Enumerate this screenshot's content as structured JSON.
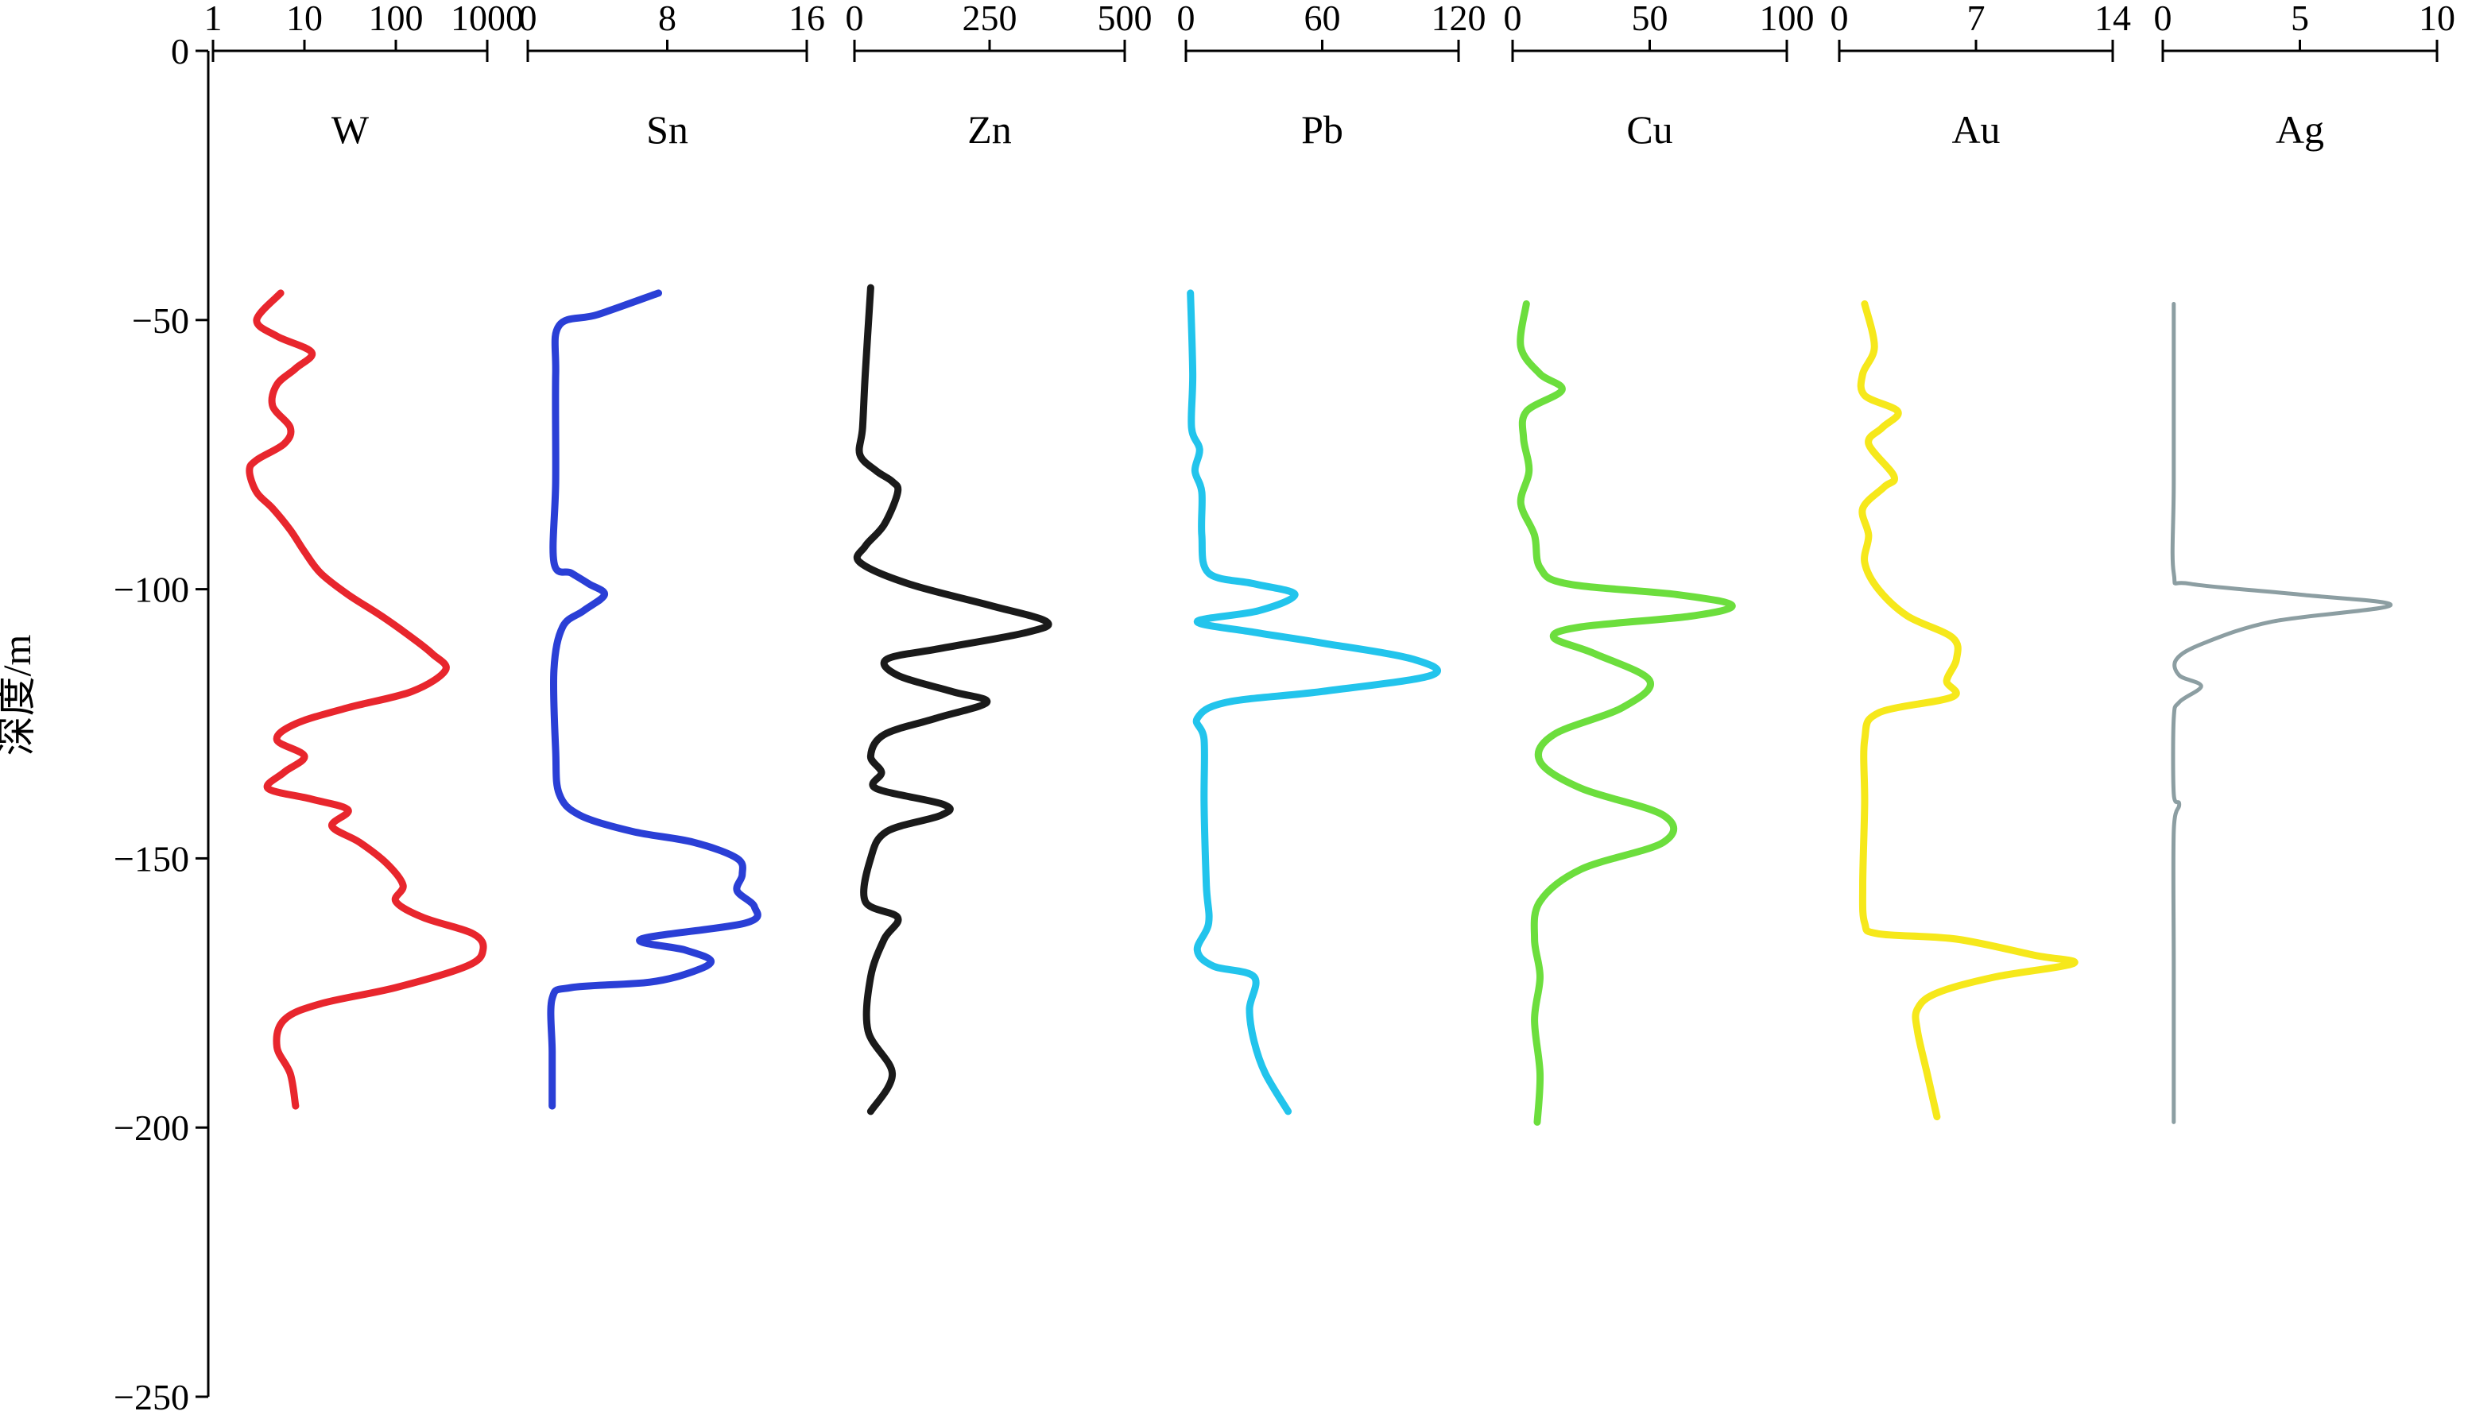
{
  "chart_data": {
    "type": "line",
    "orientation": "depth-profile",
    "ylabel": "深度/m",
    "ylim": [
      -250,
      0
    ],
    "yticks": [
      0,
      -50,
      -100,
      -150,
      -200,
      -250
    ],
    "grid": false,
    "panels": [
      {
        "name": "W",
        "color": "#e8262d",
        "scale": "log",
        "xlim": [
          1,
          1000
        ],
        "xticks": [
          1,
          10,
          100,
          1000
        ],
        "xtick_labels": [
          "1",
          "10",
          "100",
          "1000"
        ],
        "points": [
          [
            5.5,
            -45
          ],
          [
            3,
            -50
          ],
          [
            5,
            -53
          ],
          [
            12,
            -56
          ],
          [
            8,
            -59
          ],
          [
            5,
            -62
          ],
          [
            4.5,
            -66
          ],
          [
            7,
            -70
          ],
          [
            6,
            -73
          ],
          [
            3,
            -76
          ],
          [
            2.5,
            -78
          ],
          [
            3,
            -82
          ],
          [
            4.5,
            -85
          ],
          [
            7,
            -89
          ],
          [
            10,
            -93
          ],
          [
            15,
            -97
          ],
          [
            30,
            -101
          ],
          [
            70,
            -105
          ],
          [
            150,
            -109
          ],
          [
            250,
            -112
          ],
          [
            350,
            -115
          ],
          [
            150,
            -119
          ],
          [
            30,
            -122
          ],
          [
            8,
            -125
          ],
          [
            5,
            -128
          ],
          [
            10,
            -131
          ],
          [
            6,
            -134
          ],
          [
            4,
            -137
          ],
          [
            12,
            -139
          ],
          [
            30,
            -141
          ],
          [
            20,
            -144
          ],
          [
            40,
            -147
          ],
          [
            80,
            -151
          ],
          [
            120,
            -155
          ],
          [
            100,
            -158
          ],
          [
            200,
            -161
          ],
          [
            700,
            -164
          ],
          [
            900,
            -167
          ],
          [
            600,
            -170
          ],
          [
            100,
            -174
          ],
          [
            15,
            -177
          ],
          [
            6,
            -180
          ],
          [
            5,
            -185
          ],
          [
            7,
            -190
          ],
          [
            8,
            -196
          ]
        ]
      },
      {
        "name": "Sn",
        "color": "#2a3fd6",
        "scale": "linear",
        "xlim": [
          0,
          16
        ],
        "xticks": [
          0,
          8,
          16
        ],
        "xtick_labels": [
          "0",
          "8",
          "16"
        ],
        "points": [
          [
            7.5,
            -45
          ],
          [
            4,
            -49
          ],
          [
            1.8,
            -51
          ],
          [
            1.6,
            -60
          ],
          [
            1.6,
            -80
          ],
          [
            1.5,
            -95
          ],
          [
            2.5,
            -97
          ],
          [
            3.5,
            -99
          ],
          [
            4.4,
            -101
          ],
          [
            3.2,
            -104
          ],
          [
            2,
            -107
          ],
          [
            1.5,
            -115
          ],
          [
            1.6,
            -130
          ],
          [
            1.8,
            -138
          ],
          [
            3,
            -142
          ],
          [
            6,
            -145
          ],
          [
            9.5,
            -147
          ],
          [
            12,
            -150
          ],
          [
            12.3,
            -153
          ],
          [
            12,
            -156
          ],
          [
            13,
            -159
          ],
          [
            12.5,
            -162
          ],
          [
            6.5,
            -165
          ],
          [
            9,
            -167
          ],
          [
            10.5,
            -169
          ],
          [
            9.5,
            -171
          ],
          [
            7,
            -173
          ],
          [
            2.5,
            -174
          ],
          [
            1.4,
            -176
          ],
          [
            1.4,
            -186
          ],
          [
            1.4,
            -196
          ]
        ]
      },
      {
        "name": "Zn",
        "color": "#1a1a1a",
        "scale": "linear",
        "xlim": [
          0,
          500
        ],
        "xticks": [
          0,
          250,
          500
        ],
        "xtick_labels": [
          "0",
          "250",
          "500"
        ],
        "points": [
          [
            30,
            -44
          ],
          [
            20,
            -60
          ],
          [
            15,
            -70
          ],
          [
            10,
            -75
          ],
          [
            40,
            -78
          ],
          [
            70,
            -80
          ],
          [
            80,
            -82
          ],
          [
            55,
            -88
          ],
          [
            20,
            -92
          ],
          [
            10,
            -95
          ],
          [
            100,
            -99
          ],
          [
            250,
            -103
          ],
          [
            355,
            -106
          ],
          [
            320,
            -108
          ],
          [
            160,
            -111
          ],
          [
            60,
            -113
          ],
          [
            80,
            -116
          ],
          [
            180,
            -119
          ],
          [
            245,
            -121
          ],
          [
            150,
            -124
          ],
          [
            55,
            -127
          ],
          [
            30,
            -131
          ],
          [
            50,
            -134
          ],
          [
            40,
            -137
          ],
          [
            165,
            -140
          ],
          [
            160,
            -142
          ],
          [
            60,
            -145
          ],
          [
            30,
            -150
          ],
          [
            20,
            -158
          ],
          [
            80,
            -161
          ],
          [
            55,
            -165
          ],
          [
            30,
            -172
          ],
          [
            25,
            -182
          ],
          [
            70,
            -190
          ],
          [
            30,
            -197
          ]
        ]
      },
      {
        "name": "Pb",
        "color": "#22c4ec",
        "scale": "linear",
        "xlim": [
          0,
          120
        ],
        "xticks": [
          0,
          60,
          120
        ],
        "xtick_labels": [
          "0",
          "60",
          "120"
        ],
        "points": [
          [
            2,
            -45
          ],
          [
            3,
            -60
          ],
          [
            2.5,
            -70
          ],
          [
            6,
            -74
          ],
          [
            4,
            -78
          ],
          [
            7,
            -82
          ],
          [
            7,
            -90
          ],
          [
            10,
            -97
          ],
          [
            30,
            -99
          ],
          [
            48,
            -101
          ],
          [
            32,
            -104
          ],
          [
            5,
            -106
          ],
          [
            30,
            -108
          ],
          [
            60,
            -110
          ],
          [
            100,
            -113
          ],
          [
            108,
            -116
          ],
          [
            60,
            -119
          ],
          [
            18,
            -121
          ],
          [
            5,
            -124
          ],
          [
            8,
            -128
          ],
          [
            8,
            -140
          ],
          [
            9,
            -155
          ],
          [
            10,
            -162
          ],
          [
            5,
            -167
          ],
          [
            12,
            -170
          ],
          [
            30,
            -172
          ],
          [
            28,
            -178
          ],
          [
            30,
            -184
          ],
          [
            35,
            -190
          ],
          [
            45,
            -197
          ]
        ]
      },
      {
        "name": "Cu",
        "color": "#6cde3d",
        "scale": "linear",
        "xlim": [
          0,
          100
        ],
        "xticks": [
          0,
          50,
          100
        ],
        "xtick_labels": [
          "0",
          "50",
          "100"
        ],
        "points": [
          [
            5,
            -47
          ],
          [
            3,
            -55
          ],
          [
            10,
            -60
          ],
          [
            18,
            -63
          ],
          [
            5,
            -67
          ],
          [
            4,
            -72
          ],
          [
            6,
            -78
          ],
          [
            3,
            -84
          ],
          [
            8,
            -90
          ],
          [
            10,
            -96
          ],
          [
            20,
            -99
          ],
          [
            60,
            -101
          ],
          [
            80,
            -103
          ],
          [
            65,
            -105
          ],
          [
            25,
            -107
          ],
          [
            15,
            -109
          ],
          [
            30,
            -112
          ],
          [
            50,
            -117
          ],
          [
            40,
            -122
          ],
          [
            15,
            -127
          ],
          [
            10,
            -132
          ],
          [
            25,
            -137
          ],
          [
            55,
            -142
          ],
          [
            55,
            -147
          ],
          [
            25,
            -152
          ],
          [
            10,
            -158
          ],
          [
            8,
            -165
          ],
          [
            10,
            -172
          ],
          [
            8,
            -180
          ],
          [
            10,
            -190
          ],
          [
            9,
            -199
          ]
        ]
      },
      {
        "name": "Au",
        "color": "#f6e81b",
        "scale": "linear",
        "xlim": [
          0,
          14
        ],
        "xticks": [
          0,
          7,
          14
        ],
        "xtick_labels": [
          "0",
          "7",
          "14"
        ],
        "points": [
          [
            1.3,
            -47
          ],
          [
            1.8,
            -55
          ],
          [
            1.2,
            -60
          ],
          [
            1.3,
            -64
          ],
          [
            3,
            -67
          ],
          [
            2.2,
            -70
          ],
          [
            1.5,
            -73
          ],
          [
            2.8,
            -79
          ],
          [
            2.3,
            -81
          ],
          [
            1.2,
            -85
          ],
          [
            1.5,
            -90
          ],
          [
            1.3,
            -95
          ],
          [
            2,
            -100
          ],
          [
            3.5,
            -105
          ],
          [
            5.8,
            -109
          ],
          [
            6,
            -113
          ],
          [
            5.5,
            -117
          ],
          [
            5.8,
            -120
          ],
          [
            2,
            -123
          ],
          [
            1.3,
            -128
          ],
          [
            1.3,
            -140
          ],
          [
            1.2,
            -155
          ],
          [
            1.3,
            -162
          ],
          [
            2,
            -164
          ],
          [
            6,
            -165
          ],
          [
            10,
            -168
          ],
          [
            12,
            -169.5
          ],
          [
            8,
            -172
          ],
          [
            5,
            -175
          ],
          [
            4,
            -178
          ],
          [
            4,
            -182
          ],
          [
            4.5,
            -190
          ],
          [
            5,
            -198
          ]
        ]
      },
      {
        "name": "Ag",
        "color": "#8c9ea2",
        "scale": "linear",
        "xlim": [
          0,
          10
        ],
        "xticks": [
          0,
          5,
          10
        ],
        "xtick_labels": [
          "0",
          "5",
          "10"
        ],
        "points": [
          [
            0.4,
            -47
          ],
          [
            0.4,
            -80
          ],
          [
            0.4,
            -97
          ],
          [
            1,
            -99
          ],
          [
            5,
            -101
          ],
          [
            8.3,
            -103
          ],
          [
            4,
            -106
          ],
          [
            1.5,
            -110
          ],
          [
            0.5,
            -113
          ],
          [
            0.6,
            -116
          ],
          [
            1.4,
            -118
          ],
          [
            0.6,
            -121
          ],
          [
            0.4,
            -124
          ],
          [
            0.4,
            -138
          ],
          [
            0.6,
            -140
          ],
          [
            0.4,
            -145
          ],
          [
            0.4,
            -170
          ],
          [
            0.4,
            -199
          ]
        ]
      }
    ]
  }
}
